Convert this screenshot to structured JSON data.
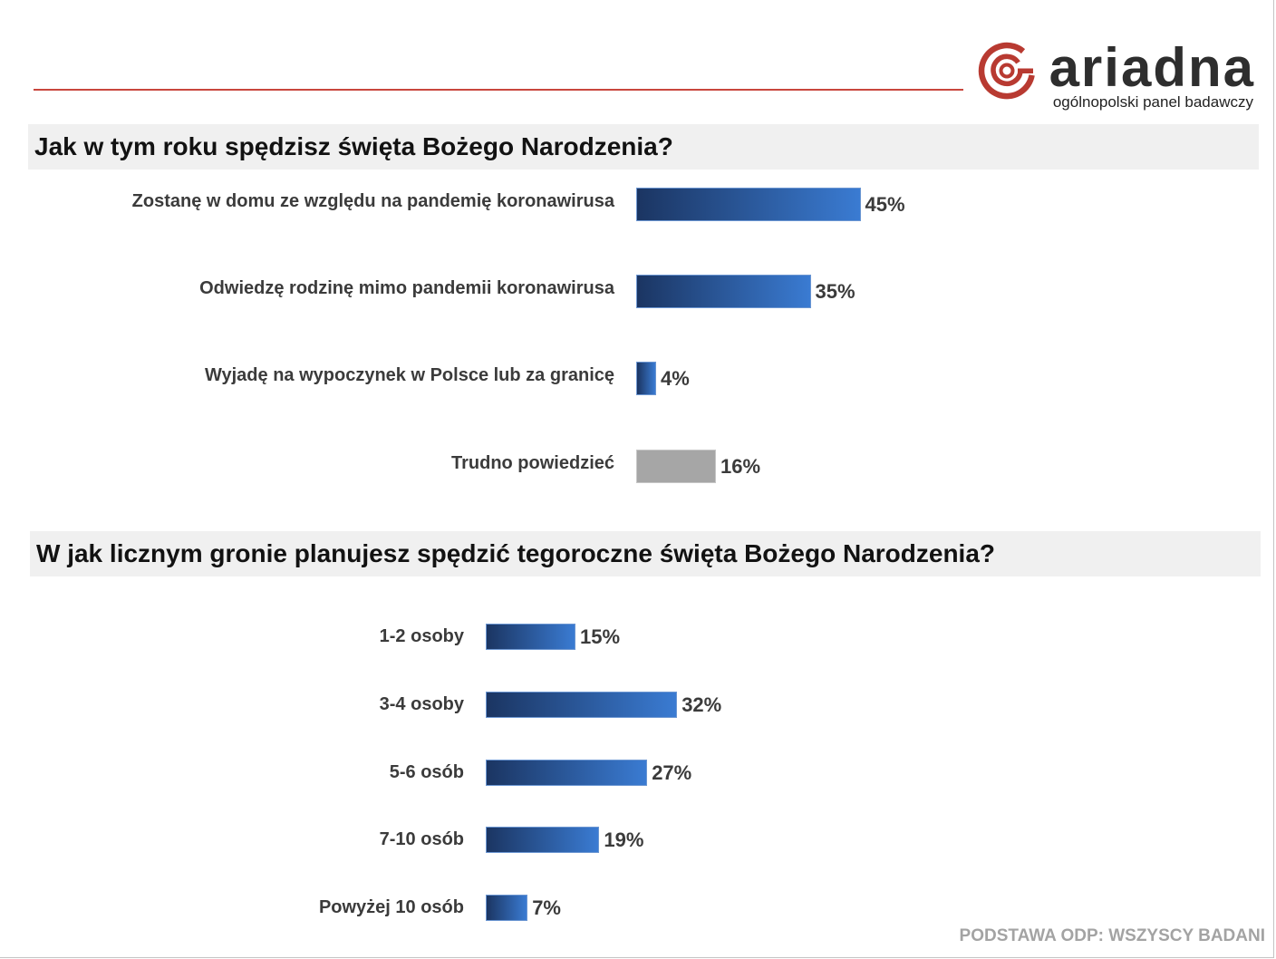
{
  "palette": {
    "rule": "#c9463d",
    "brand": "#b83a31",
    "wordmark": "#2e2e2e",
    "title_band": "#f0f0f0",
    "footer_text": "#a3a3a3"
  },
  "logo": {
    "wordmark": "ariadna",
    "tagline": "ogólnopolski panel badawczy",
    "icon": "ariadna-spiral-icon"
  },
  "chart_data": [
    {
      "type": "bar",
      "orientation": "horizontal",
      "title": "Jak w tym roku spędzisz święta Bożego Narodzenia?",
      "categories": [
        "Zostanę w domu ze względu na pandemię koronawirusa",
        "Odwiedzę rodzinę mimo pandemii koronawirusa",
        "Wyjadę na wypoczynek w Polsce lub za granicę",
        "Trudno powiedzieć"
      ],
      "values": [
        45,
        35,
        4,
        16
      ],
      "value_labels": [
        "45%",
        "35%",
        "4%",
        "16%"
      ],
      "bar_fills": [
        [
          "#1b3562",
          "#3a7bd2"
        ],
        [
          "#1b3562",
          "#3a7bd2"
        ],
        [
          "#1b3562",
          "#3a7bd2"
        ],
        [
          "#a6a6a6",
          "#a6a6a6"
        ]
      ],
      "bar_borders": [
        "#6b96d2",
        "#6b96d2",
        "#6b96d2",
        "#c6c6c6"
      ],
      "grid": false
    },
    {
      "type": "bar",
      "orientation": "horizontal",
      "title": "W jak licznym gronie planujesz spędzić tegoroczne święta Bożego Narodzenia?",
      "categories": [
        "1-2 osoby",
        "3-4 osoby",
        "5-6 osób",
        "7-10 osób",
        "Powyżej 10 osób"
      ],
      "values": [
        15,
        32,
        27,
        19,
        7
      ],
      "value_labels": [
        "15%",
        "32%",
        "27%",
        "19%",
        "7%"
      ],
      "bar_fills": [
        [
          "#1b3562",
          "#3a7bd2"
        ],
        [
          "#1b3562",
          "#3a7bd2"
        ],
        [
          "#1b3562",
          "#3a7bd2"
        ],
        [
          "#1b3562",
          "#3a7bd2"
        ],
        [
          "#1b3562",
          "#3a7bd2"
        ]
      ],
      "bar_borders": [
        "#6b96d2",
        "#6b96d2",
        "#6b96d2",
        "#6b96d2",
        "#6b96d2"
      ],
      "grid": false
    }
  ],
  "footer": {
    "base_note": "PODSTAWA ODP: WSZYSCY BADANI"
  }
}
